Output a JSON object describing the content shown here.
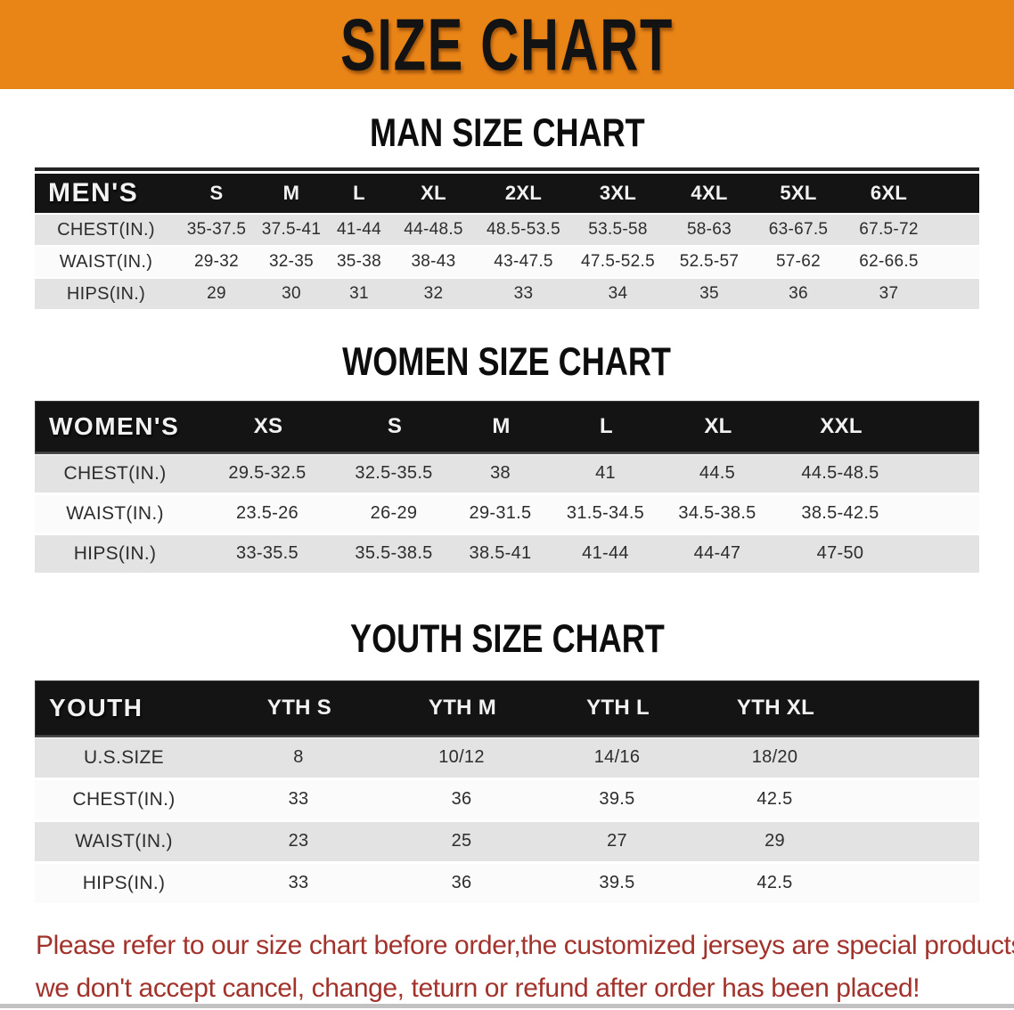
{
  "banner": {
    "title": "SIZE CHART",
    "bg_color": "#E98417"
  },
  "colors": {
    "header_bar": "#141414",
    "row_gray": "#E3E3E3",
    "note_red": "#A2322C"
  },
  "men": {
    "heading": "MAN SIZE CHART",
    "corner": "MEN'S",
    "sizes": [
      "S",
      "M",
      "L",
      "XL",
      "2XL",
      "3XL",
      "4XL",
      "5XL",
      "6XL"
    ],
    "rows": [
      {
        "label": "CHEST(IN.)",
        "values": [
          "35-37.5",
          "37.5-41",
          "41-44",
          "44-48.5",
          "48.5-53.5",
          "53.5-58",
          "58-63",
          "63-67.5",
          "67.5-72"
        ]
      },
      {
        "label": "WAIST(IN.)",
        "values": [
          "29-32",
          "32-35",
          "35-38",
          "38-43",
          "43-47.5",
          "47.5-52.5",
          "52.5-57",
          "57-62",
          "62-66.5"
        ]
      },
      {
        "label": "HIPS(IN.)",
        "values": [
          "29",
          "30",
          "31",
          "32",
          "33",
          "34",
          "35",
          "36",
          "37"
        ]
      }
    ]
  },
  "women": {
    "heading": "WOMEN SIZE CHART",
    "corner": "WOMEN'S",
    "sizes": [
      "XS",
      "S",
      "M",
      "L",
      "XL",
      "XXL"
    ],
    "rows": [
      {
        "label": "CHEST(IN.)",
        "values": [
          "29.5-32.5",
          "32.5-35.5",
          "38",
          "41",
          "44.5",
          "44.5-48.5"
        ]
      },
      {
        "label": "WAIST(IN.)",
        "values": [
          "23.5-26",
          "26-29",
          "29-31.5",
          "31.5-34.5",
          "34.5-38.5",
          "38.5-42.5"
        ]
      },
      {
        "label": "HIPS(IN.)",
        "values": [
          "33-35.5",
          "35.5-38.5",
          "38.5-41",
          "41-44",
          "44-47",
          "47-50"
        ]
      }
    ]
  },
  "youth": {
    "heading": "YOUTH SIZE CHART",
    "corner": "YOUTH",
    "sizes": [
      "YTH S",
      "YTH M",
      "YTH L",
      "YTH XL"
    ],
    "rows": [
      {
        "label": "U.S.SIZE",
        "values": [
          "8",
          "10/12",
          "14/16",
          "18/20"
        ]
      },
      {
        "label": "CHEST(IN.)",
        "values": [
          "33",
          "36",
          "39.5",
          "42.5"
        ]
      },
      {
        "label": "WAIST(IN.)",
        "values": [
          "23",
          "25",
          "27",
          "29"
        ]
      },
      {
        "label": "HIPS(IN.)",
        "values": [
          "33",
          "36",
          "39.5",
          "42.5"
        ]
      }
    ]
  },
  "footnote": {
    "line1": "Please refer to our size chart before order,the customized jerseys are special products,",
    "line2": "we don't accept cancel, change, teturn or refund after order has been placed!"
  }
}
